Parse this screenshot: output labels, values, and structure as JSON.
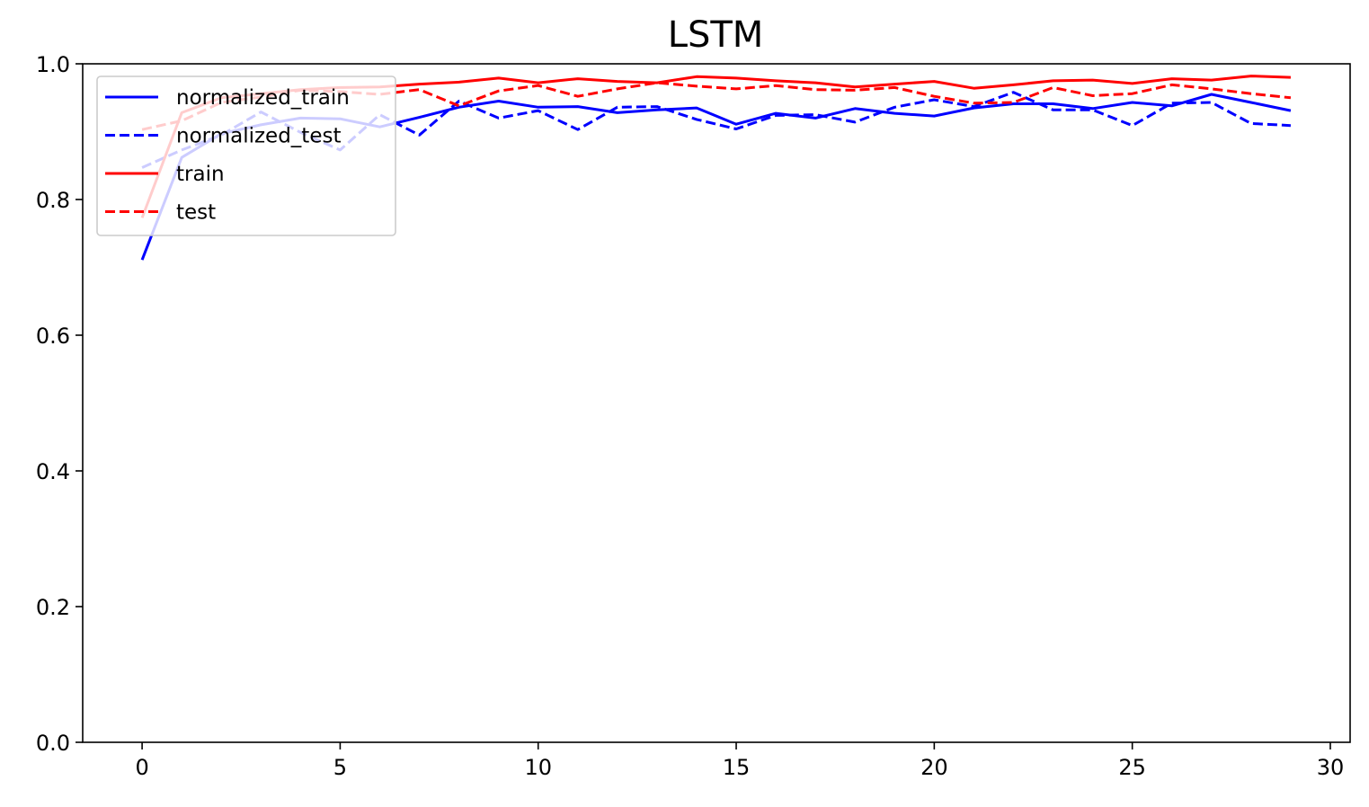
{
  "chart_data": {
    "type": "line",
    "title": "LSTM",
    "xlabel": "",
    "ylabel": "",
    "xlim": [
      -1.5,
      30.5
    ],
    "ylim": [
      0.0,
      1.0
    ],
    "x_ticks": [
      0,
      5,
      10,
      15,
      20,
      25,
      30
    ],
    "y_ticks": [
      0.0,
      0.2,
      0.4,
      0.6,
      0.8,
      1.0
    ],
    "x_tick_labels": [
      "0",
      "5",
      "10",
      "15",
      "20",
      "25",
      "30"
    ],
    "y_tick_labels": [
      "0.0",
      "0.2",
      "0.4",
      "0.6",
      "0.8",
      "1.0"
    ],
    "grid": false,
    "legend_placement": "top-left",
    "x": [
      0,
      1,
      2,
      3,
      4,
      5,
      6,
      7,
      8,
      9,
      10,
      11,
      12,
      13,
      14,
      15,
      16,
      17,
      18,
      19,
      20,
      21,
      22,
      23,
      24,
      25,
      26,
      27,
      28,
      29
    ],
    "series": [
      {
        "name": "normalized_train",
        "color": "#0000ff",
        "dash": "solid",
        "values": [
          0.711,
          0.862,
          0.897,
          0.91,
          0.92,
          0.919,
          0.907,
          0.921,
          0.936,
          0.945,
          0.936,
          0.937,
          0.928,
          0.932,
          0.935,
          0.911,
          0.927,
          0.92,
          0.934,
          0.927,
          0.923,
          0.935,
          0.941,
          0.941,
          0.934,
          0.943,
          0.938,
          0.955,
          0.943,
          0.931
        ]
      },
      {
        "name": "normalized_test",
        "color": "#0000ff",
        "dash": "dashed",
        "values": [
          0.847,
          0.873,
          0.895,
          0.929,
          0.899,
          0.873,
          0.925,
          0.895,
          0.945,
          0.92,
          0.931,
          0.903,
          0.936,
          0.937,
          0.918,
          0.904,
          0.924,
          0.925,
          0.914,
          0.936,
          0.947,
          0.937,
          0.958,
          0.932,
          0.932,
          0.909,
          0.942,
          0.943,
          0.912,
          0.909
        ]
      },
      {
        "name": "train",
        "color": "#ff0000",
        "dash": "solid",
        "values": [
          0.773,
          0.928,
          0.95,
          0.956,
          0.962,
          0.965,
          0.966,
          0.97,
          0.973,
          0.979,
          0.972,
          0.978,
          0.974,
          0.972,
          0.981,
          0.979,
          0.975,
          0.972,
          0.966,
          0.97,
          0.974,
          0.964,
          0.969,
          0.975,
          0.976,
          0.971,
          0.978,
          0.976,
          0.982,
          0.98
        ]
      },
      {
        "name": "test",
        "color": "#ff0000",
        "dash": "dashed",
        "values": [
          0.903,
          0.916,
          0.943,
          0.951,
          0.961,
          0.959,
          0.955,
          0.962,
          0.938,
          0.96,
          0.968,
          0.952,
          0.963,
          0.972,
          0.967,
          0.963,
          0.968,
          0.962,
          0.961,
          0.965,
          0.952,
          0.942,
          0.943,
          0.965,
          0.953,
          0.956,
          0.969,
          0.963,
          0.956,
          0.95
        ]
      }
    ]
  }
}
